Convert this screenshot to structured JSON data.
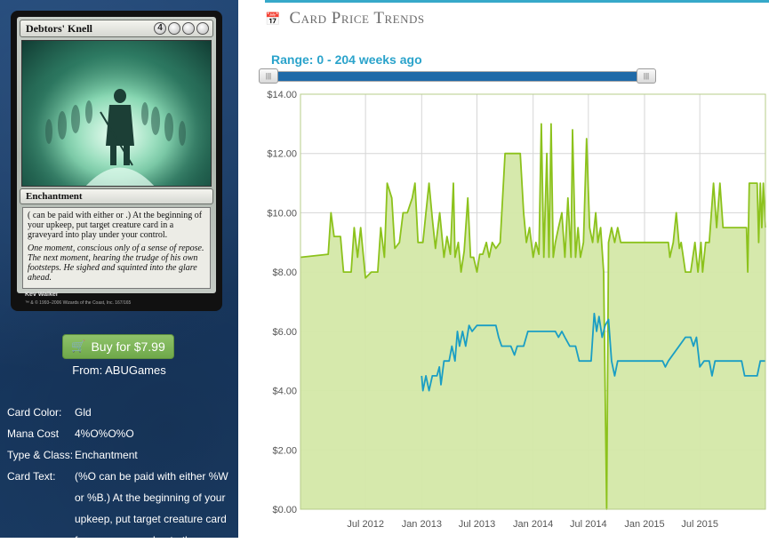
{
  "card": {
    "name": "Debtors' Knell",
    "mana_symbols": [
      "4",
      "",
      "",
      ""
    ],
    "type_line": "Enchantment",
    "rules_text_image": "( can be paid with either or .) At the beginning of your upkeep, put target creature card in a graveyard into play under your control.",
    "flavor_text": "One moment, conscious only of a sense of repose. The next moment, hearing the trudge of his own footsteps. He sighed and squinted into the glare ahead.",
    "artist": "Kev Walker",
    "copyright": "™ & © 1993–2006 Wizards of the Coast, Inc. 167/165"
  },
  "buy": {
    "label": "Buy for $7.99",
    "from": "From: ABUGames"
  },
  "details": [
    {
      "key": "Card Color:",
      "value": "Gld"
    },
    {
      "key": "Mana Cost",
      "value": "4%O%O%O"
    },
    {
      "key": "Type & Class:",
      "value": "Enchantment"
    },
    {
      "key": "Card Text:",
      "value": "(%O can be paid with either %W or %B.) At the beginning of your upkeep, put target creature card from a graveyard onto the"
    }
  ],
  "panel": {
    "title": "Card Price Trends",
    "range_label": "Range: 0 - 204 weeks ago"
  },
  "slider": {
    "min_weeks": 0,
    "max_weeks": 204,
    "value_weeks": [
      0,
      204
    ]
  },
  "colors": {
    "sidebar": "#1d3f6a",
    "accent": "#36a9c9",
    "buy_green": "#7cb356",
    "series_retail": "#8cc21c",
    "series_buylist": "#1a9ec4",
    "area_fill": "#d4e8a8"
  },
  "chart_data": {
    "type": "line",
    "title": "",
    "xlabel": "",
    "ylabel": "",
    "ylim": [
      0,
      14
    ],
    "yticks": [
      "$0.00",
      "$2.00",
      "$4.00",
      "$6.00",
      "$8.00",
      "$10.00",
      "$12.00",
      "$14.00"
    ],
    "xticks": [
      "Jul 2012",
      "Jan 2013",
      "Jul 2013",
      "Jan 2014",
      "Jul 2014",
      "Jan 2015",
      "Jul 2015"
    ],
    "xtick_dates": [
      "2012-07-01",
      "2013-01-01",
      "2013-07-01",
      "2014-01-01",
      "2014-07-01",
      "2015-01-01",
      "2015-07-01"
    ],
    "xlim": [
      "2011-12-01",
      "2016-02-01"
    ],
    "grid": true,
    "series": [
      {
        "filled": true,
        "points": [
          [
            "2011-12-01",
            8.5
          ],
          [
            "2012-03-01",
            8.6
          ],
          [
            "2012-03-10",
            10.0
          ],
          [
            "2012-03-20",
            9.2
          ],
          [
            "2012-04-10",
            9.2
          ],
          [
            "2012-04-20",
            8.0
          ],
          [
            "2012-05-15",
            8.0
          ],
          [
            "2012-05-25",
            9.5
          ],
          [
            "2012-06-05",
            8.5
          ],
          [
            "2012-06-15",
            9.5
          ],
          [
            "2012-07-01",
            7.8
          ],
          [
            "2012-07-20",
            8.0
          ],
          [
            "2012-08-10",
            8.0
          ],
          [
            "2012-08-20",
            9.5
          ],
          [
            "2012-09-01",
            8.5
          ],
          [
            "2012-09-10",
            11.0
          ],
          [
            "2012-09-25",
            10.5
          ],
          [
            "2012-10-05",
            8.8
          ],
          [
            "2012-10-20",
            9.0
          ],
          [
            "2012-11-01",
            10.0
          ],
          [
            "2012-11-15",
            10.0
          ],
          [
            "2012-12-01",
            10.5
          ],
          [
            "2012-12-10",
            11.0
          ],
          [
            "2012-12-20",
            9.0
          ],
          [
            "2013-01-05",
            9.0
          ],
          [
            "2013-01-15",
            10.0
          ],
          [
            "2013-01-25",
            11.0
          ],
          [
            "2013-02-05",
            9.8
          ],
          [
            "2013-02-15",
            8.8
          ],
          [
            "2013-03-01",
            10.0
          ],
          [
            "2013-03-15",
            8.5
          ],
          [
            "2013-03-25",
            9.2
          ],
          [
            "2013-04-05",
            8.6
          ],
          [
            "2013-04-15",
            11.0
          ],
          [
            "2013-04-20",
            8.5
          ],
          [
            "2013-05-01",
            9.0
          ],
          [
            "2013-05-10",
            8.0
          ],
          [
            "2013-05-20",
            8.7
          ],
          [
            "2013-06-01",
            10.5
          ],
          [
            "2013-06-10",
            8.5
          ],
          [
            "2013-06-20",
            8.5
          ],
          [
            "2013-07-01",
            8.0
          ],
          [
            "2013-07-10",
            8.6
          ],
          [
            "2013-07-20",
            8.6
          ],
          [
            "2013-08-01",
            9.0
          ],
          [
            "2013-08-10",
            8.5
          ],
          [
            "2013-08-20",
            9.0
          ],
          [
            "2013-09-01",
            8.8
          ],
          [
            "2013-09-15",
            9.0
          ],
          [
            "2013-10-01",
            12.0
          ],
          [
            "2013-10-20",
            12.0
          ],
          [
            "2013-11-20",
            12.0
          ],
          [
            "2013-12-01",
            10.0
          ],
          [
            "2013-12-10",
            9.0
          ],
          [
            "2013-12-20",
            9.5
          ],
          [
            "2014-01-01",
            8.5
          ],
          [
            "2014-01-10",
            9.0
          ],
          [
            "2014-01-20",
            8.6
          ],
          [
            "2014-01-28",
            13.0
          ],
          [
            "2014-02-05",
            8.5
          ],
          [
            "2014-02-15",
            12.0
          ],
          [
            "2014-02-22",
            8.5
          ],
          [
            "2014-03-01",
            13.0
          ],
          [
            "2014-03-08",
            8.5
          ],
          [
            "2014-03-15",
            9.0
          ],
          [
            "2014-03-25",
            9.5
          ],
          [
            "2014-04-05",
            10.0
          ],
          [
            "2014-04-15",
            8.5
          ],
          [
            "2014-04-25",
            10.5
          ],
          [
            "2014-05-05",
            8.5
          ],
          [
            "2014-05-10",
            12.8
          ],
          [
            "2014-05-20",
            8.5
          ],
          [
            "2014-05-28",
            9.5
          ],
          [
            "2014-06-05",
            8.5
          ],
          [
            "2014-06-15",
            9.0
          ],
          [
            "2014-06-25",
            12.5
          ],
          [
            "2014-07-05",
            9.5
          ],
          [
            "2014-07-15",
            9.0
          ],
          [
            "2014-07-25",
            10.0
          ],
          [
            "2014-08-01",
            9.0
          ],
          [
            "2014-08-10",
            9.5
          ],
          [
            "2014-08-20",
            8.0
          ],
          [
            "2014-08-30",
            0.0
          ],
          [
            "2014-09-05",
            9.0
          ],
          [
            "2014-09-15",
            9.5
          ],
          [
            "2014-09-25",
            9.0
          ],
          [
            "2014-10-05",
            9.5
          ],
          [
            "2014-10-15",
            9.0
          ],
          [
            "2014-11-01",
            9.0
          ],
          [
            "2014-12-01",
            9.0
          ],
          [
            "2015-01-01",
            9.0
          ],
          [
            "2015-02-01",
            9.0
          ],
          [
            "2015-03-01",
            9.0
          ],
          [
            "2015-03-20",
            9.0
          ],
          [
            "2015-03-25",
            8.5
          ],
          [
            "2015-04-05",
            9.0
          ],
          [
            "2015-04-15",
            10.0
          ],
          [
            "2015-04-25",
            8.8
          ],
          [
            "2015-05-01",
            9.0
          ],
          [
            "2015-05-15",
            8.0
          ],
          [
            "2015-06-01",
            8.0
          ],
          [
            "2015-06-15",
            9.0
          ],
          [
            "2015-06-25",
            8.0
          ],
          [
            "2015-07-05",
            9.0
          ],
          [
            "2015-07-10",
            8.0
          ],
          [
            "2015-07-20",
            9.0
          ],
          [
            "2015-08-01",
            9.0
          ],
          [
            "2015-08-15",
            11.0
          ],
          [
            "2015-08-25",
            9.5
          ],
          [
            "2015-09-05",
            11.0
          ],
          [
            "2015-09-15",
            9.5
          ],
          [
            "2015-10-15",
            9.5
          ],
          [
            "2015-11-15",
            9.5
          ],
          [
            "2015-12-01",
            9.5
          ],
          [
            "2015-12-05",
            8.0
          ],
          [
            "2015-12-10",
            11.0
          ],
          [
            "2016-01-05",
            11.0
          ],
          [
            "2016-01-10",
            9.0
          ],
          [
            "2016-01-15",
            11.0
          ],
          [
            "2016-01-20",
            9.5
          ],
          [
            "2016-01-25",
            11.0
          ],
          [
            "2016-02-01",
            9.5
          ]
        ]
      },
      {
        "filled": false,
        "points": [
          [
            "2013-01-01",
            4.5
          ],
          [
            "2013-01-05",
            4.0
          ],
          [
            "2013-01-15",
            4.5
          ],
          [
            "2013-01-25",
            4.0
          ],
          [
            "2013-02-05",
            4.5
          ],
          [
            "2013-02-20",
            4.5
          ],
          [
            "2013-02-28",
            4.8
          ],
          [
            "2013-03-05",
            4.2
          ],
          [
            "2013-03-15",
            5.0
          ],
          [
            "2013-04-01",
            5.0
          ],
          [
            "2013-04-10",
            5.5
          ],
          [
            "2013-04-20",
            5.0
          ],
          [
            "2013-04-28",
            6.0
          ],
          [
            "2013-05-05",
            5.5
          ],
          [
            "2013-05-15",
            6.0
          ],
          [
            "2013-05-25",
            5.5
          ],
          [
            "2013-06-05",
            6.2
          ],
          [
            "2013-06-15",
            6.0
          ],
          [
            "2013-07-01",
            6.2
          ],
          [
            "2013-08-01",
            6.2
          ],
          [
            "2013-09-01",
            6.2
          ],
          [
            "2013-09-10",
            5.8
          ],
          [
            "2013-09-20",
            5.5
          ],
          [
            "2013-10-20",
            5.5
          ],
          [
            "2013-11-01",
            5.2
          ],
          [
            "2013-11-10",
            5.5
          ],
          [
            "2013-12-01",
            5.5
          ],
          [
            "2013-12-15",
            6.0
          ],
          [
            "2014-01-15",
            6.0
          ],
          [
            "2014-02-15",
            6.0
          ],
          [
            "2014-03-15",
            6.0
          ],
          [
            "2014-03-25",
            5.8
          ],
          [
            "2014-04-05",
            6.0
          ],
          [
            "2014-04-15",
            5.8
          ],
          [
            "2014-05-01",
            5.5
          ],
          [
            "2014-05-20",
            5.5
          ],
          [
            "2014-06-01",
            5.0
          ],
          [
            "2014-07-01",
            5.0
          ],
          [
            "2014-07-10",
            5.0
          ],
          [
            "2014-07-20",
            6.6
          ],
          [
            "2014-07-28",
            6.0
          ],
          [
            "2014-08-05",
            6.5
          ],
          [
            "2014-08-15",
            5.8
          ],
          [
            "2014-08-25",
            6.2
          ],
          [
            "2014-09-05",
            6.4
          ],
          [
            "2014-09-15",
            5.0
          ],
          [
            "2014-09-25",
            4.5
          ],
          [
            "2014-10-05",
            5.0
          ],
          [
            "2014-11-01",
            5.0
          ],
          [
            "2014-12-01",
            5.0
          ],
          [
            "2015-01-01",
            5.0
          ],
          [
            "2015-02-01",
            5.0
          ],
          [
            "2015-03-01",
            5.0
          ],
          [
            "2015-03-10",
            4.8
          ],
          [
            "2015-03-20",
            5.0
          ],
          [
            "2015-04-10",
            5.3
          ],
          [
            "2015-05-15",
            5.8
          ],
          [
            "2015-06-01",
            5.8
          ],
          [
            "2015-06-10",
            5.5
          ],
          [
            "2015-06-20",
            5.8
          ],
          [
            "2015-07-01",
            4.8
          ],
          [
            "2015-07-15",
            5.0
          ],
          [
            "2015-08-01",
            5.0
          ],
          [
            "2015-08-10",
            4.5
          ],
          [
            "2015-08-20",
            5.0
          ],
          [
            "2015-09-15",
            5.0
          ],
          [
            "2015-10-15",
            5.0
          ],
          [
            "2015-11-15",
            5.0
          ],
          [
            "2015-11-25",
            4.5
          ],
          [
            "2015-12-15",
            4.5
          ],
          [
            "2016-01-05",
            4.5
          ],
          [
            "2016-01-15",
            5.0
          ],
          [
            "2016-02-01",
            5.0
          ]
        ]
      }
    ]
  }
}
